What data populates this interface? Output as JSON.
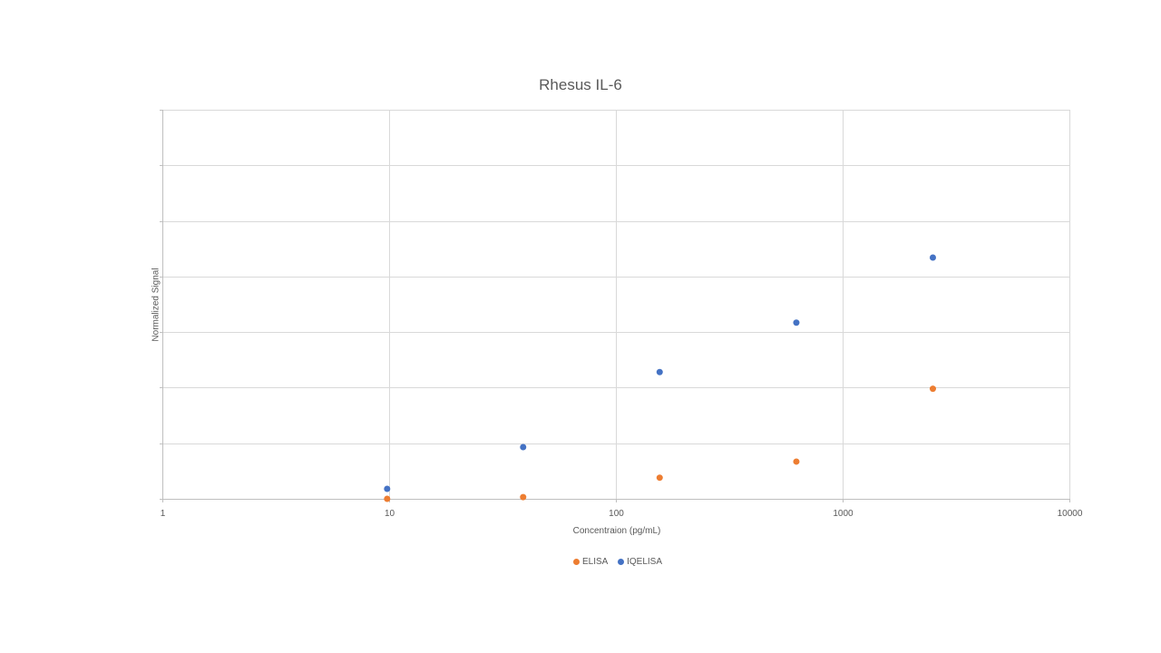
{
  "chart_data": {
    "type": "scatter",
    "title": "Rhesus IL-6",
    "xlabel": "Concentraion (pg/mL)",
    "ylabel": "Normalized Signal",
    "x_scale": "log",
    "xlim": [
      1,
      10000
    ],
    "x_ticks": [
      "1",
      "10",
      "100",
      "1000",
      "10000"
    ],
    "ylim": [
      0,
      7
    ],
    "y_ticks_labeled": false,
    "grid": true,
    "legend_position": "bottom",
    "series": [
      {
        "name": "ELISA",
        "color": "#ED7D31",
        "points": [
          {
            "x": 9.8,
            "y": 0.0
          },
          {
            "x": 39,
            "y": 0.03
          },
          {
            "x": 156,
            "y": 0.38
          },
          {
            "x": 625,
            "y": 0.67
          },
          {
            "x": 2500,
            "y": 1.98
          }
        ]
      },
      {
        "name": "IQELISA",
        "color": "#4472C4",
        "points": [
          {
            "x": 9.8,
            "y": 0.18
          },
          {
            "x": 39,
            "y": 0.93
          },
          {
            "x": 156,
            "y": 2.28
          },
          {
            "x": 625,
            "y": 3.17
          },
          {
            "x": 2500,
            "y": 4.34
          }
        ]
      }
    ]
  }
}
